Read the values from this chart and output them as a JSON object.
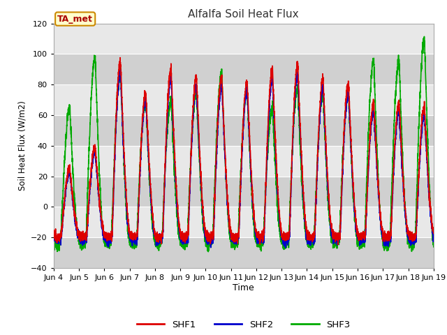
{
  "title": "Alfalfa Soil Heat Flux",
  "ylabel": "Soil Heat Flux (W/m2)",
  "xlabel": "Time",
  "ylim": [
    -40,
    120
  ],
  "xlim_days": [
    4,
    19
  ],
  "tag_label": "TA_met",
  "tag_bg": "#ffffcc",
  "tag_border": "#cc8800",
  "tag_text_color": "#aa0000",
  "fig_bg": "#ffffff",
  "plot_bg": "#e8e8e8",
  "series": {
    "SHF1": {
      "color": "#dd0000",
      "lw": 1.2
    },
    "SHF2": {
      "color": "#0000cc",
      "lw": 1.2
    },
    "SHF3": {
      "color": "#00aa00",
      "lw": 1.2
    }
  },
  "xtick_labels": [
    "Jun 4",
    "Jun 5",
    "Jun 6",
    "Jun 7",
    "Jun 8",
    "Jun 9",
    "Jun 10",
    "Jun 11",
    "Jun 12",
    "Jun 13",
    "Jun 14",
    "Jun 15",
    "Jun 16",
    "Jun 17",
    "Jun 18",
    "Jun 19"
  ],
  "ytick_values": [
    -40,
    -20,
    0,
    20,
    40,
    60,
    80,
    100,
    120
  ],
  "grid_color": "#ffffff",
  "shf1_daily_peaks": [
    25,
    40,
    95,
    75,
    90,
    85,
    85,
    82,
    90,
    93,
    84,
    81,
    68,
    68,
    65
  ],
  "shf3_daily_peaks": [
    65,
    98,
    88,
    70,
    70,
    75,
    87,
    76,
    65,
    78,
    74,
    75,
    96,
    95,
    110
  ],
  "night_val": -20,
  "pts_per_day": 288
}
